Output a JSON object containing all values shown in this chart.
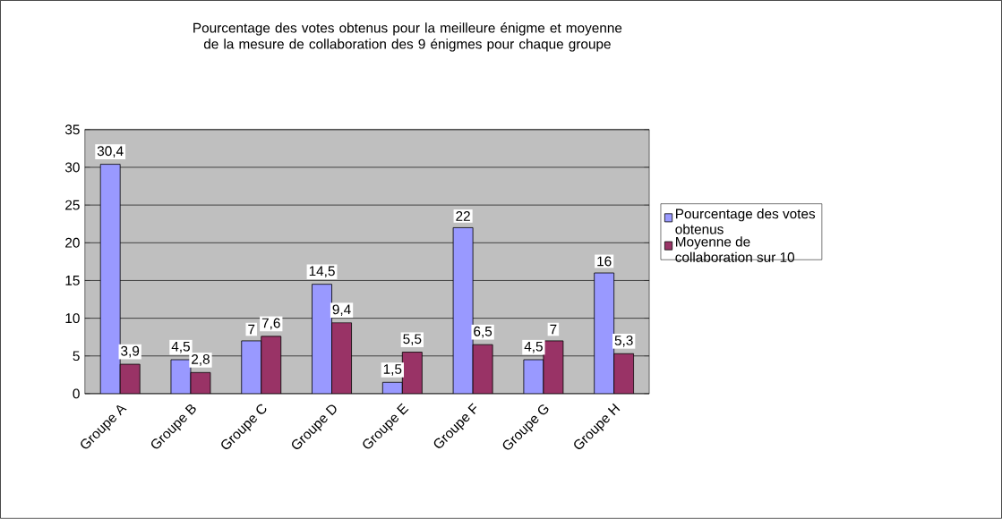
{
  "chart_data": {
    "type": "bar",
    "title": "Pourcentage des votes obtenus pour la meilleure énigme et moyenne de la mesure de collaboration des 9 énigmes pour chaque groupe",
    "categories": [
      "Groupe A",
      "Groupe B",
      "Groupe C",
      "Groupe D",
      "Groupe E",
      "Groupe F",
      "Groupe G",
      "Groupe H"
    ],
    "series": [
      {
        "name": "Pourcentage des votes obtenus",
        "color": "#9999ff",
        "values": [
          30.4,
          4.5,
          7,
          14.5,
          1.5,
          22,
          4.5,
          16
        ],
        "value_labels": [
          "30,4",
          "4,5",
          "7",
          "14,5",
          "1,5",
          "22",
          "4,5",
          "16"
        ]
      },
      {
        "name": "Moyenne de collaboration sur 10",
        "color": "#993366",
        "values": [
          3.9,
          2.8,
          7.6,
          9.4,
          5.5,
          6.5,
          7,
          5.3
        ],
        "value_labels": [
          "3,9",
          "2,8",
          "7,6",
          "9,4",
          "5,5",
          "6,5",
          "7",
          "5,3"
        ]
      }
    ],
    "ylim": [
      0,
      35
    ],
    "yticks": [
      0,
      5,
      10,
      15,
      20,
      25,
      30,
      35
    ],
    "grid": "y",
    "legend": "right"
  }
}
